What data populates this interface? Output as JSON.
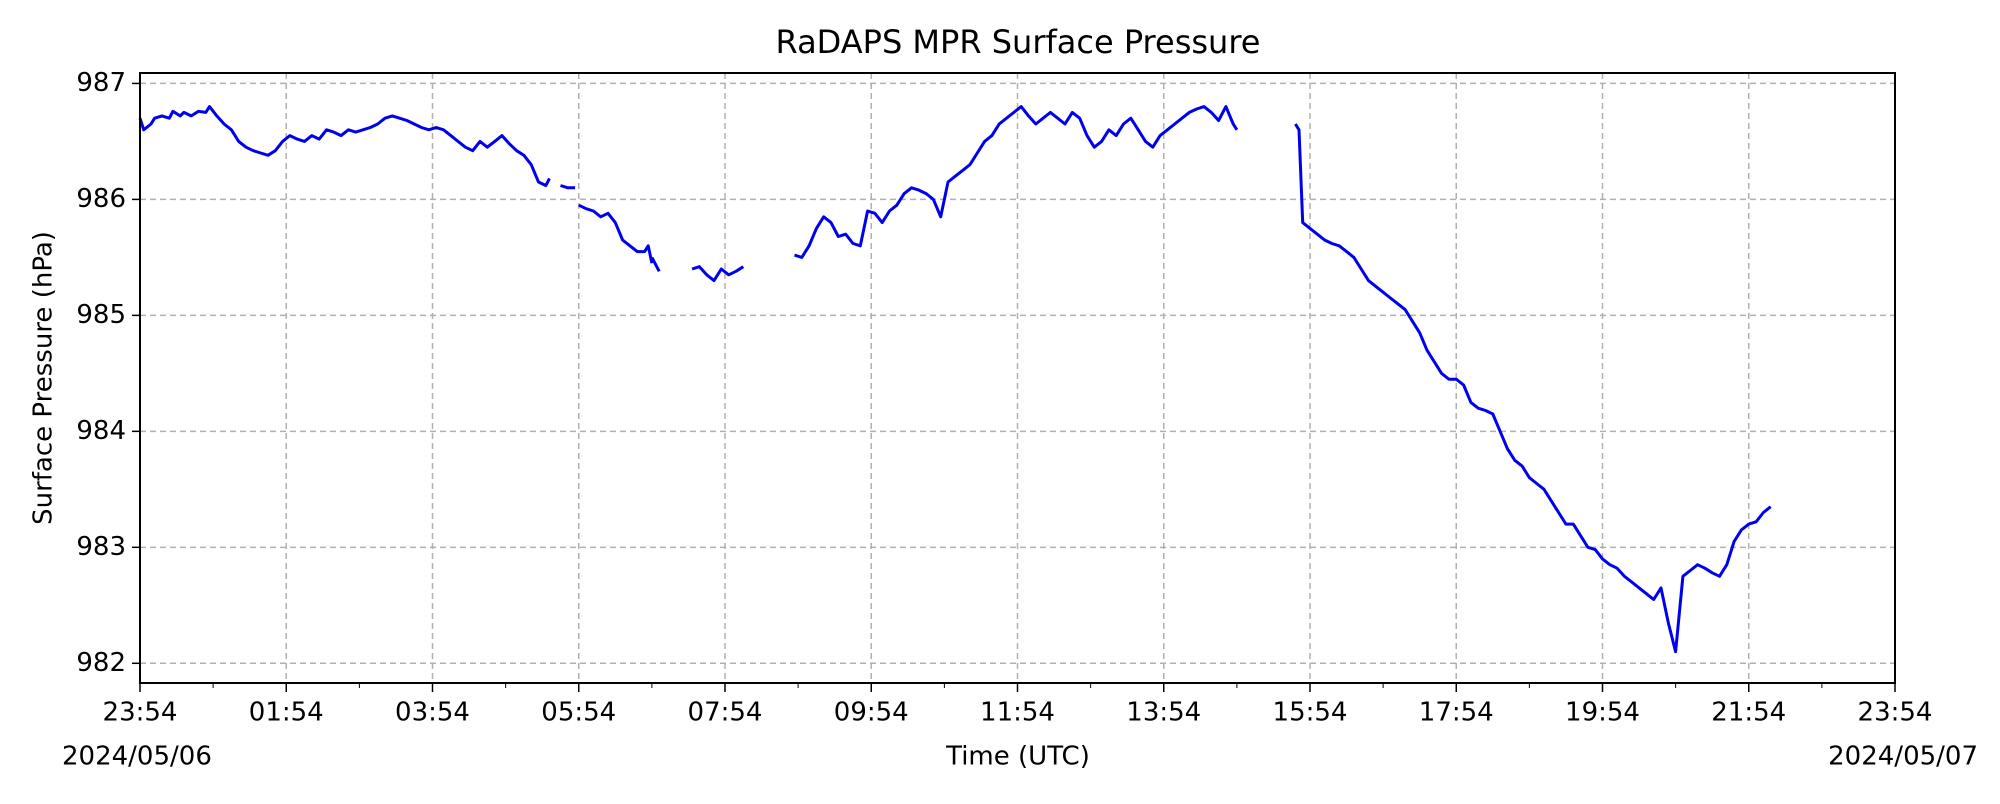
{
  "chart_data": {
    "type": "line",
    "title": "RaDAPS MPR Surface Pressure",
    "xlabel": "Time (UTC)",
    "ylabel": "Surface Pressure (hPa)",
    "x_start_label": "2024/05/06",
    "x_end_label": "2024/05/07",
    "x_unit": "hours after 2024/05/06 23:54 UTC",
    "xlim": [
      0,
      24
    ],
    "ylim": [
      981.83,
      987.09
    ],
    "x_ticks": [
      {
        "x": 0,
        "label": "23:54"
      },
      {
        "x": 2,
        "label": "01:54"
      },
      {
        "x": 4,
        "label": "03:54"
      },
      {
        "x": 6,
        "label": "05:54"
      },
      {
        "x": 8,
        "label": "07:54"
      },
      {
        "x": 10,
        "label": "09:54"
      },
      {
        "x": 12,
        "label": "11:54"
      },
      {
        "x": 14,
        "label": "13:54"
      },
      {
        "x": 16,
        "label": "15:54"
      },
      {
        "x": 18,
        "label": "17:54"
      },
      {
        "x": 20,
        "label": "19:54"
      },
      {
        "x": 22,
        "label": "21:54"
      },
      {
        "x": 24,
        "label": "23:54"
      }
    ],
    "y_ticks": [
      982,
      983,
      984,
      985,
      986,
      987
    ],
    "grid": true,
    "line_color": "#0000ee",
    "grid_color": "#b0b0b0",
    "series": [
      {
        "segments": [
          [
            [
              0,
              986.7
            ],
            [
              0.05,
              986.6
            ],
            [
              0.15,
              986.65
            ],
            [
              0.2,
              986.7
            ],
            [
              0.3,
              986.72
            ],
            [
              0.4,
              986.7
            ],
            [
              0.45,
              986.76
            ],
            [
              0.55,
              986.72
            ],
            [
              0.6,
              986.75
            ],
            [
              0.7,
              986.72
            ],
            [
              0.8,
              986.76
            ],
            [
              0.9,
              986.75
            ],
            [
              0.95,
              986.8
            ],
            [
              1.05,
              986.72
            ],
            [
              1.15,
              986.65
            ],
            [
              1.25,
              986.6
            ],
            [
              1.35,
              986.5
            ],
            [
              1.45,
              986.45
            ],
            [
              1.55,
              986.42
            ],
            [
              1.65,
              986.4
            ],
            [
              1.75,
              986.38
            ],
            [
              1.85,
              986.42
            ],
            [
              1.95,
              986.5
            ],
            [
              2.05,
              986.55
            ],
            [
              2.15,
              986.52
            ],
            [
              2.25,
              986.5
            ],
            [
              2.35,
              986.55
            ],
            [
              2.45,
              986.52
            ],
            [
              2.55,
              986.6
            ],
            [
              2.65,
              986.58
            ],
            [
              2.75,
              986.55
            ],
            [
              2.85,
              986.6
            ],
            [
              2.95,
              986.58
            ],
            [
              3.05,
              986.6
            ],
            [
              3.15,
              986.62
            ],
            [
              3.25,
              986.65
            ],
            [
              3.35,
              986.7
            ],
            [
              3.45,
              986.72
            ],
            [
              3.55,
              986.7
            ],
            [
              3.65,
              986.68
            ],
            [
              3.75,
              986.65
            ],
            [
              3.85,
              986.62
            ],
            [
              3.95,
              986.6
            ],
            [
              4.05,
              986.62
            ],
            [
              4.15,
              986.6
            ],
            [
              4.25,
              986.55
            ],
            [
              4.35,
              986.5
            ],
            [
              4.45,
              986.45
            ],
            [
              4.55,
              986.42
            ],
            [
              4.65,
              986.5
            ],
            [
              4.75,
              986.45
            ],
            [
              4.85,
              986.5
            ],
            [
              4.95,
              986.55
            ],
            [
              5.05,
              986.48
            ],
            [
              5.15,
              986.42
            ],
            [
              5.25,
              986.38
            ],
            [
              5.35,
              986.3
            ],
            [
              5.45,
              986.15
            ],
            [
              5.55,
              986.12
            ],
            [
              5.6,
              986.18
            ]
          ],
          [
            [
              5.75,
              986.12
            ],
            [
              5.85,
              986.1
            ],
            [
              5.95,
              986.1
            ]
          ],
          [
            [
              6.0,
              985.95
            ],
            [
              6.1,
              985.92
            ],
            [
              6.2,
              985.9
            ],
            [
              6.3,
              985.85
            ],
            [
              6.4,
              985.88
            ],
            [
              6.5,
              985.8
            ],
            [
              6.6,
              985.65
            ],
            [
              6.7,
              985.6
            ],
            [
              6.8,
              985.55
            ],
            [
              6.9,
              985.55
            ],
            [
              6.95,
              985.6
            ],
            [
              7.0,
              985.45
            ]
          ],
          [
            [
              7.0,
              985.5
            ],
            [
              7.1,
              985.38
            ]
          ],
          [
            [
              7.55,
              985.4
            ],
            [
              7.65,
              985.42
            ],
            [
              7.75,
              985.35
            ],
            [
              7.85,
              985.3
            ],
            [
              7.95,
              985.4
            ],
            [
              8.05,
              985.35
            ],
            [
              8.15,
              985.38
            ],
            [
              8.25,
              985.42
            ]
          ],
          [
            [
              8.95,
              985.52
            ],
            [
              9.05,
              985.5
            ],
            [
              9.15,
              985.6
            ],
            [
              9.25,
              985.75
            ],
            [
              9.35,
              985.85
            ],
            [
              9.45,
              985.8
            ],
            [
              9.55,
              985.68
            ],
            [
              9.65,
              985.7
            ],
            [
              9.75,
              985.62
            ],
            [
              9.85,
              985.6
            ],
            [
              9.95,
              985.9
            ],
            [
              10.05,
              985.88
            ],
            [
              10.15,
              985.8
            ],
            [
              10.25,
              985.9
            ],
            [
              10.35,
              985.95
            ],
            [
              10.45,
              986.05
            ],
            [
              10.55,
              986.1
            ],
            [
              10.65,
              986.08
            ],
            [
              10.75,
              986.05
            ],
            [
              10.85,
              986.0
            ],
            [
              10.95,
              985.85
            ],
            [
              11.05,
              986.15
            ],
            [
              11.15,
              986.2
            ],
            [
              11.25,
              986.25
            ],
            [
              11.35,
              986.3
            ],
            [
              11.45,
              986.4
            ],
            [
              11.55,
              986.5
            ],
            [
              11.65,
              986.55
            ],
            [
              11.75,
              986.65
            ],
            [
              11.85,
              986.7
            ],
            [
              11.95,
              986.75
            ],
            [
              12.05,
              986.8
            ],
            [
              12.15,
              986.72
            ],
            [
              12.25,
              986.65
            ],
            [
              12.35,
              986.7
            ],
            [
              12.45,
              986.75
            ],
            [
              12.55,
              986.7
            ],
            [
              12.65,
              986.65
            ],
            [
              12.75,
              986.75
            ],
            [
              12.85,
              986.7
            ],
            [
              12.95,
              986.55
            ],
            [
              13.05,
              986.45
            ],
            [
              13.15,
              986.5
            ],
            [
              13.25,
              986.6
            ],
            [
              13.35,
              986.55
            ],
            [
              13.45,
              986.65
            ],
            [
              13.55,
              986.7
            ],
            [
              13.65,
              986.6
            ],
            [
              13.75,
              986.5
            ],
            [
              13.85,
              986.45
            ],
            [
              13.95,
              986.55
            ],
            [
              14.05,
              986.6
            ],
            [
              14.15,
              986.65
            ],
            [
              14.25,
              986.7
            ],
            [
              14.35,
              986.75
            ],
            [
              14.45,
              986.78
            ],
            [
              14.55,
              986.8
            ],
            [
              14.65,
              986.75
            ],
            [
              14.75,
              986.68
            ],
            [
              14.85,
              986.8
            ],
            [
              14.95,
              986.65
            ],
            [
              15.0,
              986.6
            ]
          ],
          [
            [
              15.8,
              986.65
            ],
            [
              15.85,
              986.6
            ],
            [
              15.9,
              985.8
            ],
            [
              16.0,
              985.75
            ],
            [
              16.1,
              985.7
            ],
            [
              16.2,
              985.65
            ],
            [
              16.3,
              985.62
            ],
            [
              16.4,
              985.6
            ],
            [
              16.5,
              985.55
            ],
            [
              16.6,
              985.5
            ],
            [
              16.7,
              985.4
            ],
            [
              16.8,
              985.3
            ],
            [
              16.9,
              985.25
            ],
            [
              17.0,
              985.2
            ],
            [
              17.1,
              985.15
            ],
            [
              17.2,
              985.1
            ],
            [
              17.3,
              985.05
            ],
            [
              17.4,
              984.95
            ],
            [
              17.5,
              984.85
            ],
            [
              17.6,
              984.7
            ],
            [
              17.7,
              984.6
            ],
            [
              17.8,
              984.5
            ],
            [
              17.9,
              984.45
            ],
            [
              18.0,
              984.45
            ],
            [
              18.1,
              984.4
            ],
            [
              18.2,
              984.25
            ],
            [
              18.3,
              984.2
            ],
            [
              18.4,
              984.18
            ],
            [
              18.5,
              984.15
            ],
            [
              18.6,
              984.0
            ],
            [
              18.7,
              983.85
            ],
            [
              18.8,
              983.75
            ],
            [
              18.9,
              983.7
            ],
            [
              19.0,
              983.6
            ],
            [
              19.1,
              983.55
            ],
            [
              19.2,
              983.5
            ],
            [
              19.3,
              983.4
            ],
            [
              19.4,
              983.3
            ],
            [
              19.5,
              983.2
            ],
            [
              19.6,
              983.2
            ],
            [
              19.7,
              983.1
            ],
            [
              19.8,
              983.0
            ],
            [
              19.9,
              982.98
            ],
            [
              20.0,
              982.9
            ],
            [
              20.1,
              982.85
            ],
            [
              20.2,
              982.82
            ],
            [
              20.3,
              982.75
            ],
            [
              20.4,
              982.7
            ],
            [
              20.5,
              982.65
            ],
            [
              20.6,
              982.6
            ],
            [
              20.7,
              982.55
            ],
            [
              20.8,
              982.65
            ],
            [
              20.9,
              982.35
            ],
            [
              21.0,
              982.1
            ],
            [
              21.1,
              982.75
            ],
            [
              21.2,
              982.8
            ],
            [
              21.3,
              982.85
            ],
            [
              21.4,
              982.82
            ],
            [
              21.5,
              982.78
            ],
            [
              21.6,
              982.75
            ],
            [
              21.7,
              982.85
            ],
            [
              21.8,
              983.05
            ],
            [
              21.9,
              983.15
            ],
            [
              22.0,
              983.2
            ],
            [
              22.1,
              983.22
            ],
            [
              22.2,
              983.3
            ],
            [
              22.3,
              983.35
            ]
          ]
        ]
      }
    ]
  }
}
